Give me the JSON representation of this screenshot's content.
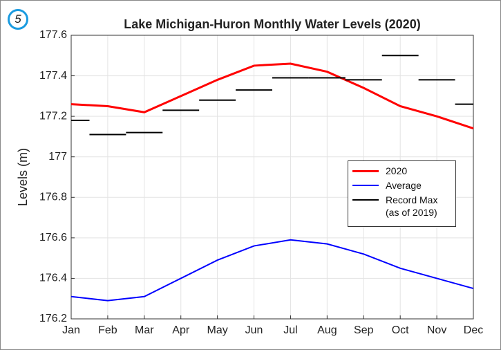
{
  "badge": "5",
  "chart_data": {
    "type": "line",
    "title": "Lake Michigan-Huron Monthly Water Levels (2020)",
    "y_label": "Levels (m)",
    "categories": [
      "Jan",
      "Feb",
      "Mar",
      "Apr",
      "May",
      "Jun",
      "Jul",
      "Aug",
      "Sep",
      "Oct",
      "Nov",
      "Dec"
    ],
    "series": [
      {
        "name": "2020",
        "color": "#ff0000",
        "style": "line",
        "values": [
          177.26,
          177.25,
          177.22,
          177.3,
          177.38,
          177.45,
          177.46,
          177.42,
          177.34,
          177.25,
          177.2,
          177.14
        ]
      },
      {
        "name": "Average",
        "color": "#0000ff",
        "style": "line",
        "values": [
          176.31,
          176.29,
          176.31,
          176.4,
          176.49,
          176.56,
          176.59,
          176.57,
          176.52,
          176.45,
          176.4,
          176.35
        ]
      },
      {
        "name": "Record Max (as of 2019)",
        "color": "#000000",
        "style": "segments",
        "values": [
          177.18,
          177.11,
          177.12,
          177.23,
          177.28,
          177.33,
          177.39,
          177.39,
          177.38,
          177.5,
          177.38,
          177.26
        ]
      }
    ],
    "ylim": [
      176.2,
      177.6
    ],
    "yticks": [
      176.2,
      176.4,
      176.6,
      176.8,
      177,
      177.2,
      177.4,
      177.6
    ],
    "grid": true
  }
}
